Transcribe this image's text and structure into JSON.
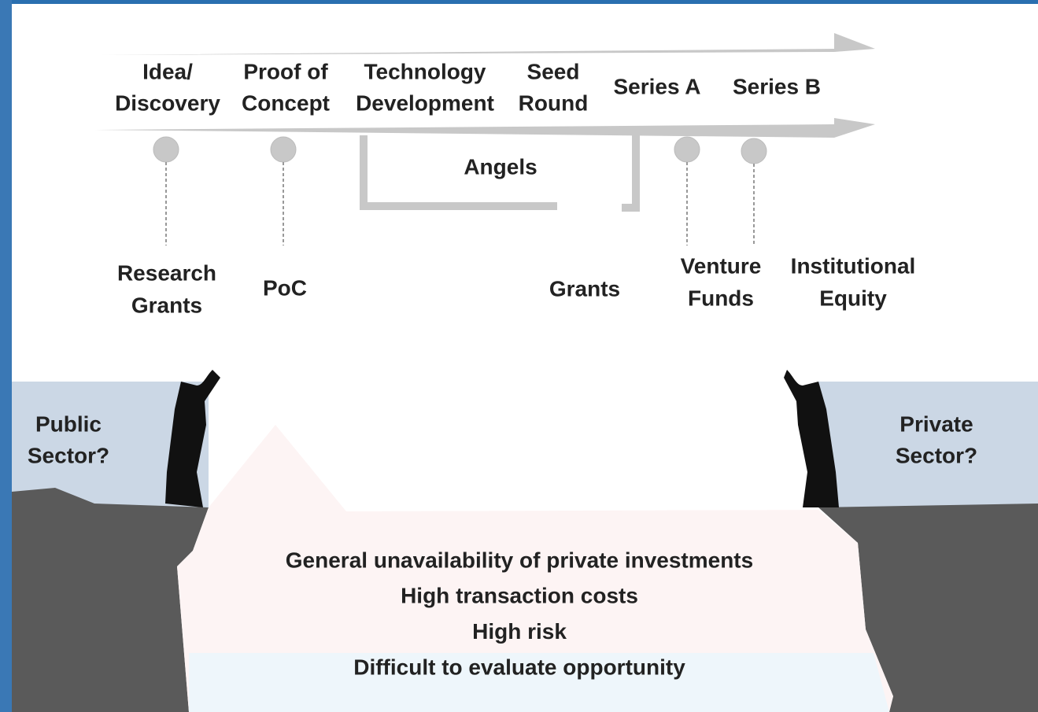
{
  "stages": [
    [
      "Idea/",
      "Discovery"
    ],
    [
      "Proof of",
      "Concept"
    ],
    [
      "Technology",
      "Development"
    ],
    [
      "Seed",
      "Round"
    ],
    [
      "Series A"
    ],
    [
      "Series B"
    ]
  ],
  "funding": {
    "research_grants": [
      "Research",
      "Grants"
    ],
    "poc": "PoC",
    "angels": "Angels",
    "grants": "Grants",
    "venture_funds": [
      "Venture",
      "Funds"
    ],
    "institutional_equity": [
      "Institutional",
      "Equity"
    ]
  },
  "sides": {
    "public": [
      "Public",
      "Sector?"
    ],
    "private": [
      "Private",
      "Sector?"
    ]
  },
  "gap": {
    "headline": "General unavailability of private investments",
    "reasons": [
      "High transaction costs",
      "High risk",
      "Difficult to evaluate opportunity"
    ]
  }
}
